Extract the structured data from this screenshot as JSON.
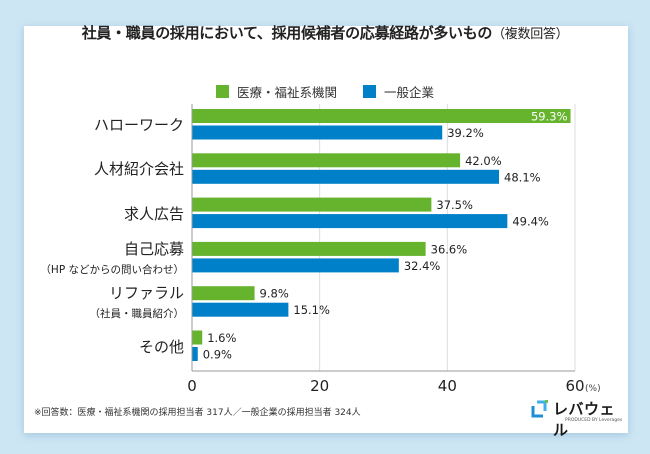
{
  "chart_data": {
    "type": "bar",
    "orientation": "horizontal",
    "title": "社員・職員の採用において、採用候補者の応募経路が多いもの",
    "title_suffix": "（複数回答）",
    "categories": [
      {
        "label": "ハローワーク",
        "note": ""
      },
      {
        "label": "人材紹介会社",
        "note": ""
      },
      {
        "label": "求人広告",
        "note": ""
      },
      {
        "label": "自己応募",
        "note": "（HP などからの問い合わせ）"
      },
      {
        "label": "リファラル",
        "note": "（社員・職員紹介）"
      },
      {
        "label": "その他",
        "note": ""
      }
    ],
    "series": [
      {
        "name": "医療・福祉系機関",
        "color": "#66b32e",
        "values": [
          59.3,
          42.0,
          37.5,
          36.6,
          9.8,
          1.6
        ],
        "labels": [
          "59.3%",
          "42.0%",
          "37.5%",
          "36.6%",
          "9.8%",
          "1.6%"
        ]
      },
      {
        "name": "一般企業",
        "color": "#0080c8",
        "values": [
          39.2,
          48.1,
          49.4,
          32.4,
          15.1,
          0.9
        ],
        "labels": [
          "39.2%",
          "48.1%",
          "49.4%",
          "32.4%",
          "15.1%",
          "0.9%"
        ]
      }
    ],
    "xlim": [
      0,
      60
    ],
    "xticks": [
      "0",
      "20",
      "40",
      "60"
    ],
    "xunit": "(%)",
    "xlabel": "",
    "ylabel": "",
    "grid": true,
    "legend_position": "top-center"
  },
  "footnote": "※回答数：医療・福祉系機関の採用担当者 317人／一般企業の採用担当者 324人",
  "brand": {
    "name": "レバウェル",
    "produced_by": "PRODUCED BY Leverages"
  }
}
